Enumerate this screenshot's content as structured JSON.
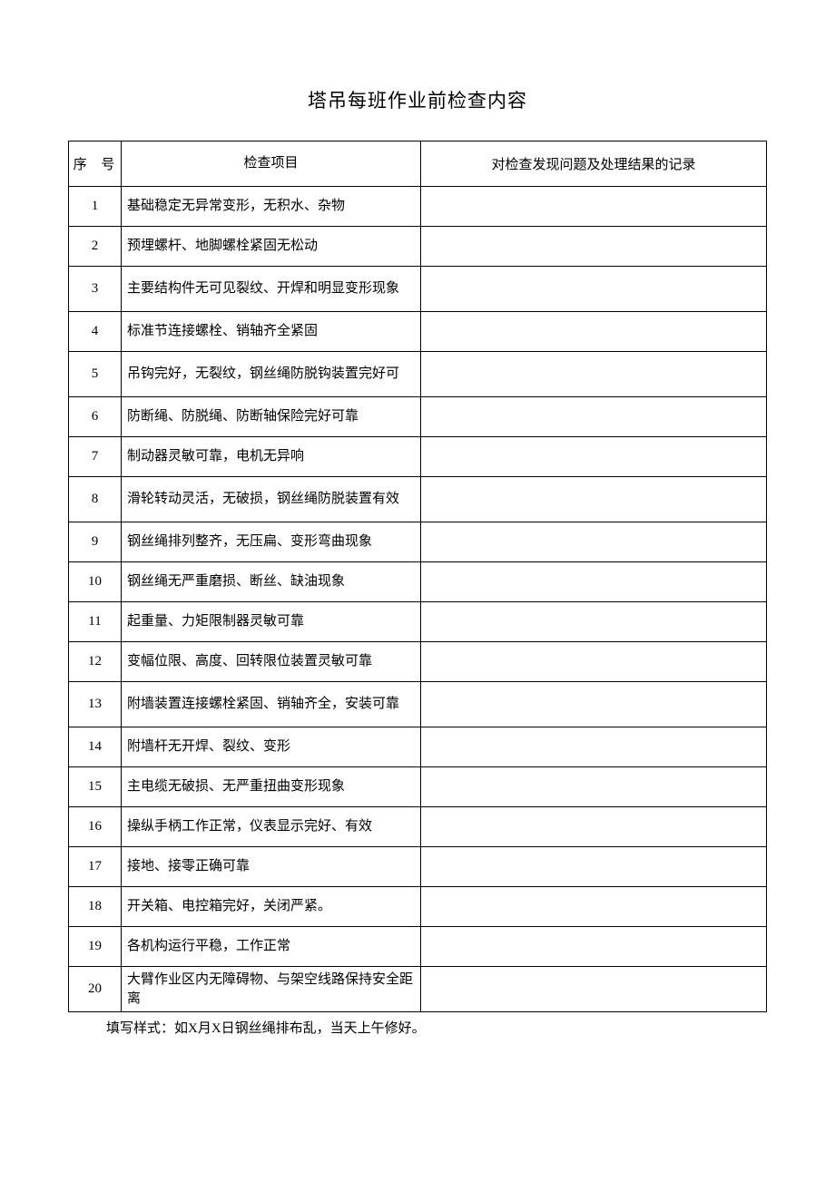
{
  "title": "塔吊每班作业前检查内容",
  "columns": {
    "num": "序 号",
    "item": "检查项目",
    "record": "对检查发现问题及处理结果的记录"
  },
  "rows": [
    {
      "num": "1",
      "item": "基础稳定无异常变形，无积水、杂物",
      "record": ""
    },
    {
      "num": "2",
      "item": "预埋螺杆、地脚螺栓紧固无松动",
      "record": ""
    },
    {
      "num": "3",
      "item": "主要结构件无可见裂纹、开焊和明显变形现象",
      "record": ""
    },
    {
      "num": "4",
      "item": "标准节连接螺栓、销轴齐全紧固",
      "record": ""
    },
    {
      "num": "5",
      "item": "吊钩完好，无裂纹，钢丝绳防脱钩装置完好可",
      "record": ""
    },
    {
      "num": "6",
      "item": "防断绳、防脱绳、防断轴保险完好可靠",
      "record": ""
    },
    {
      "num": "7",
      "item": "制动器灵敏可靠，电机无异响",
      "record": ""
    },
    {
      "num": "8",
      "item": "滑轮转动灵活，无破损，钢丝绳防脱装置有效",
      "record": ""
    },
    {
      "num": "9",
      "item": "钢丝绳排列整齐，无压扁、变形弯曲现象",
      "record": ""
    },
    {
      "num": "10",
      "item": "钢丝绳无严重磨损、断丝、缺油现象",
      "record": ""
    },
    {
      "num": "11",
      "item": "起重量、力矩限制器灵敏可靠",
      "record": ""
    },
    {
      "num": "12",
      "item": "变幅位限、高度、回转限位装置灵敏可靠",
      "record": ""
    },
    {
      "num": "13",
      "item": "  附墙装置连接螺栓紧固、销轴齐全，安装可靠",
      "record": ""
    },
    {
      "num": "14",
      "item": "附墙杆无开焊、裂纹、变形",
      "record": ""
    },
    {
      "num": "15",
      "item": "主电缆无破损、无严重扭曲变形现象",
      "record": ""
    },
    {
      "num": "16",
      "item": "操纵手柄工作正常，仪表显示完好、有效",
      "record": ""
    },
    {
      "num": "17",
      "item": "接地、接零正确可靠",
      "record": ""
    },
    {
      "num": "18",
      "item": "开关箱、电控箱完好，关闭严紧。",
      "record": ""
    },
    {
      "num": "19",
      "item": "各机构运行平稳，工作正常",
      "record": ""
    },
    {
      "num": "20",
      "item": "大臂作业区内无障碍物、与架空线路保持安全距离",
      "record": ""
    }
  ],
  "footnote": "填写样式：如X月X日钢丝绳排布乱，当天上午修好。"
}
